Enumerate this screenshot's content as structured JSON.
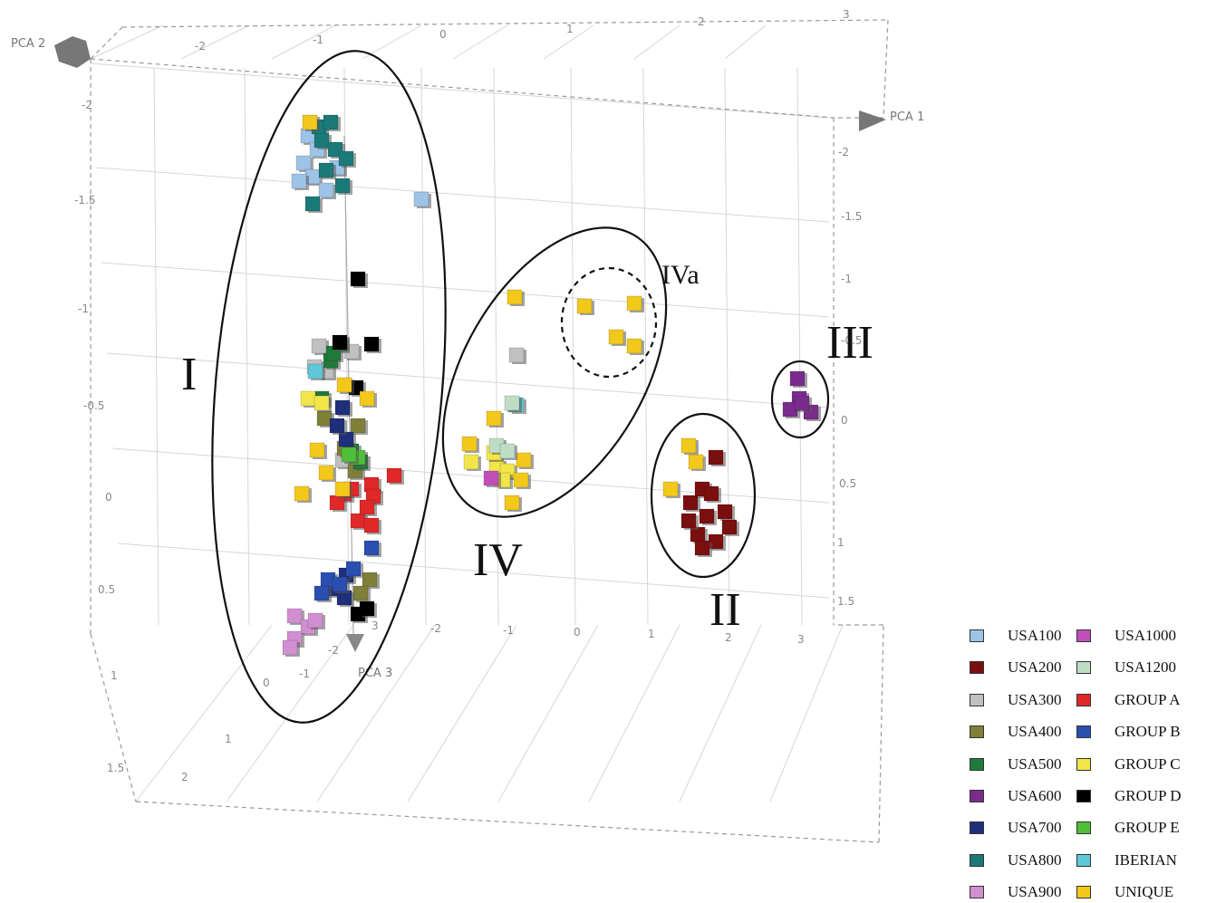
{
  "chart_data": {
    "type": "scatter",
    "title": "",
    "axes": {
      "x": "PCA 1",
      "y": "PCA 2",
      "z": "PCA 3"
    },
    "tick_labels": {
      "pca1_top": [
        "-2",
        "-1",
        "0",
        "1",
        "2",
        "3"
      ],
      "pca1_bottom": [
        "-2",
        "-1",
        "0",
        "1",
        "2",
        "3"
      ],
      "pca2_left": [
        "-2",
        "-1.5",
        "-1",
        "-0.5",
        "0",
        "0.5",
        "1",
        "1.5"
      ],
      "pca2_right": [
        "-2",
        "-1.5",
        "-1",
        "-0.5",
        "0",
        "0.5",
        "1",
        "1.5"
      ],
      "pca3": [
        "-2",
        "-1",
        "0",
        "1",
        "2",
        "3"
      ]
    },
    "clusters": [
      {
        "label": "I"
      },
      {
        "label": "II"
      },
      {
        "label": "III"
      },
      {
        "label": "IV"
      },
      {
        "label": "IVa"
      }
    ],
    "series": [
      {
        "name": "USA100",
        "color": "#9dc3e6"
      },
      {
        "name": "USA200",
        "color": "#7a0f0f"
      },
      {
        "name": "USA300",
        "color": "#c0c0c0"
      },
      {
        "name": "USA400",
        "color": "#7f7f3a"
      },
      {
        "name": "USA500",
        "color": "#1e7b3a"
      },
      {
        "name": "USA600",
        "color": "#7a2c8c"
      },
      {
        "name": "USA700",
        "color": "#1f2f7a"
      },
      {
        "name": "USA800",
        "color": "#1b7a78"
      },
      {
        "name": "USA900",
        "color": "#d18ed0"
      },
      {
        "name": "USA1000",
        "color": "#c050b8"
      },
      {
        "name": "USA1200",
        "color": "#bfdcc4"
      },
      {
        "name": "GROUP A",
        "color": "#e02828"
      },
      {
        "name": "GROUP B",
        "color": "#2a4fb0"
      },
      {
        "name": "GROUP C",
        "color": "#f0e64a"
      },
      {
        "name": "GROUP D",
        "color": "#000000"
      },
      {
        "name": "GROUP E",
        "color": "#4fbf3a"
      },
      {
        "name": "IBERIAN",
        "color": "#5fc8d8"
      },
      {
        "name": "UNIQUE",
        "color": "#f2c81a"
      }
    ]
  }
}
